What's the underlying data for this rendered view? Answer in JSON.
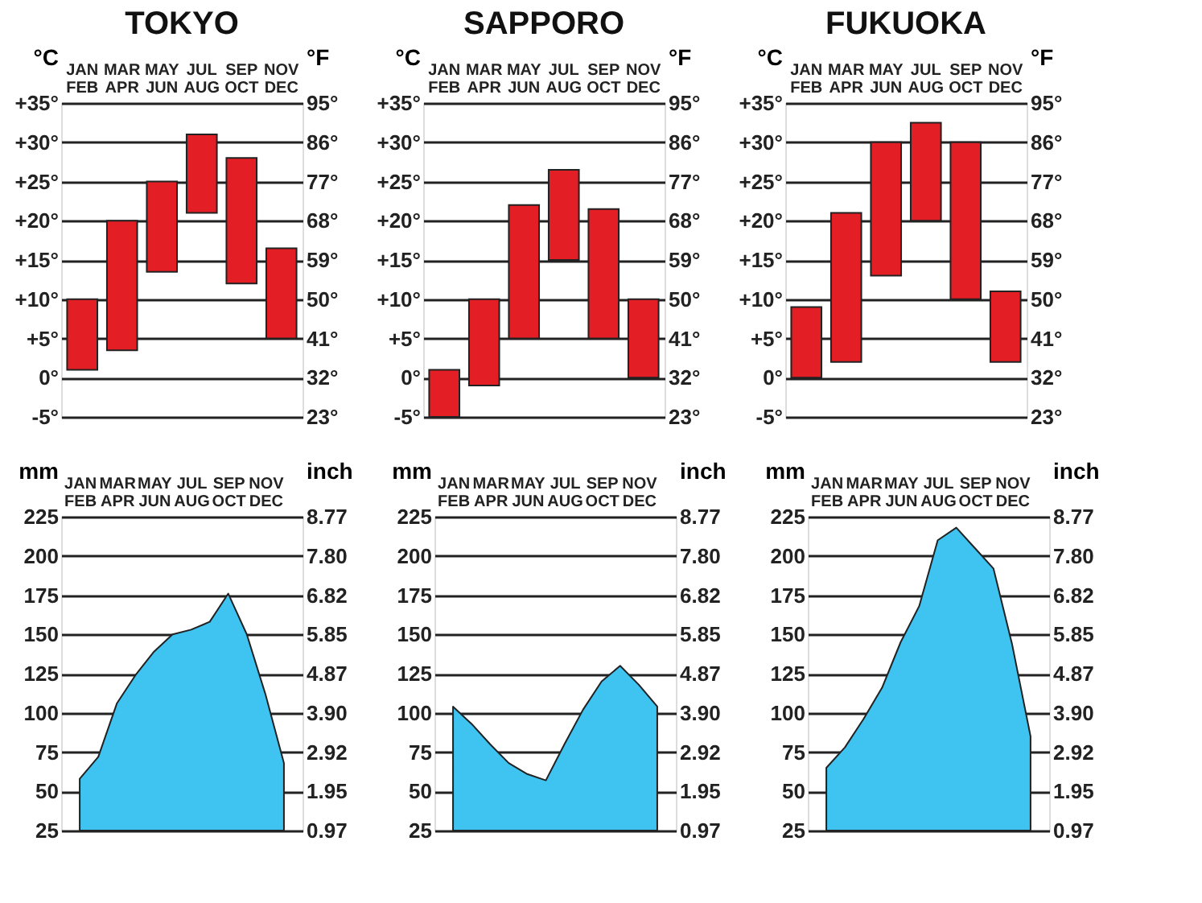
{
  "chart_data": [
    {
      "type": "bar",
      "title": "TOKYO",
      "categories": [
        "JAN\nFEB",
        "MAR\nAPR",
        "MAY\nJUN",
        "JUL\nAUG",
        "SEP\nOCT",
        "NOV\nDEC"
      ],
      "base": [
        1,
        3.5,
        13.5,
        21,
        12,
        5
      ],
      "values": [
        9,
        16.5,
        11.5,
        10,
        16,
        11.5
      ],
      "color": "#e31e24",
      "ylabel": "°C",
      "y2label": "°F",
      "ylim": [
        -5,
        35
      ],
      "yticks": [
        {
          "value": -5,
          "label": "-5°"
        },
        {
          "value": 0,
          "label": "0°"
        },
        {
          "value": 5,
          "label": "+5°"
        },
        {
          "value": 10,
          "label": "+10°"
        },
        {
          "value": 15,
          "label": "+15°"
        },
        {
          "value": 20,
          "label": "+20°"
        },
        {
          "value": 25,
          "label": "+25°"
        },
        {
          "value": 30,
          "label": "+30°"
        },
        {
          "value": 35,
          "label": "+35°"
        }
      ],
      "y2lim": [
        23,
        95
      ],
      "y2ticks": [
        {
          "value": 23,
          "label": "23°"
        },
        {
          "value": 32,
          "label": "32°"
        },
        {
          "value": 41,
          "label": "41°"
        },
        {
          "value": 50,
          "label": "50°"
        },
        {
          "value": 59,
          "label": "59°"
        },
        {
          "value": 68,
          "label": "68°"
        },
        {
          "value": 77,
          "label": "77°"
        },
        {
          "value": 86,
          "label": "86°"
        },
        {
          "value": 95,
          "label": "95°"
        }
      ],
      "grid": "y"
    },
    {
      "type": "bar",
      "title": "SAPPORO",
      "categories": [
        "JAN\nFEB",
        "MAR\nAPR",
        "MAY\nJUN",
        "JUL\nAUG",
        "SEP\nOCT",
        "NOV\nDEC"
      ],
      "base": [
        -5,
        -1,
        5,
        15,
        5,
        0
      ],
      "values": [
        6,
        11,
        17,
        11.5,
        16.5,
        10
      ],
      "color": "#e31e24",
      "ylabel": "°C",
      "y2label": "°F",
      "ylim": [
        -5,
        35
      ],
      "yticks": [
        {
          "value": -5,
          "label": "-5°"
        },
        {
          "value": 0,
          "label": "0°"
        },
        {
          "value": 5,
          "label": "+5°"
        },
        {
          "value": 10,
          "label": "+10°"
        },
        {
          "value": 15,
          "label": "+15°"
        },
        {
          "value": 20,
          "label": "+20°"
        },
        {
          "value": 25,
          "label": "+25°"
        },
        {
          "value": 30,
          "label": "+30°"
        },
        {
          "value": 35,
          "label": "+35°"
        }
      ],
      "y2lim": [
        23,
        95
      ],
      "y2ticks": [
        {
          "value": 23,
          "label": "23°"
        },
        {
          "value": 32,
          "label": "32°"
        },
        {
          "value": 41,
          "label": "41°"
        },
        {
          "value": 50,
          "label": "50°"
        },
        {
          "value": 59,
          "label": "59°"
        },
        {
          "value": 68,
          "label": "68°"
        },
        {
          "value": 77,
          "label": "77°"
        },
        {
          "value": 86,
          "label": "86°"
        },
        {
          "value": 95,
          "label": "95°"
        }
      ],
      "grid": "y"
    },
    {
      "type": "bar",
      "title": "FUKUOKA",
      "categories": [
        "JAN\nFEB",
        "MAR\nAPR",
        "MAY\nJUN",
        "JUL\nAUG",
        "SEP\nOCT",
        "NOV\nDEC"
      ],
      "base": [
        0,
        2,
        13,
        20,
        10,
        2
      ],
      "values": [
        9,
        19,
        17,
        12.5,
        20,
        9
      ],
      "color": "#e31e24",
      "ylabel": "°C",
      "y2label": "°F",
      "ylim": [
        -5,
        35
      ],
      "yticks": [
        {
          "value": -5,
          "label": "-5°"
        },
        {
          "value": 0,
          "label": "0°"
        },
        {
          "value": 5,
          "label": "+5°"
        },
        {
          "value": 10,
          "label": "+10°"
        },
        {
          "value": 15,
          "label": "+15°"
        },
        {
          "value": 20,
          "label": "+20°"
        },
        {
          "value": 25,
          "label": "+25°"
        },
        {
          "value": 30,
          "label": "+30°"
        },
        {
          "value": 35,
          "label": "+35°"
        }
      ],
      "y2lim": [
        23,
        95
      ],
      "y2ticks": [
        {
          "value": 23,
          "label": "23°"
        },
        {
          "value": 32,
          "label": "32°"
        },
        {
          "value": 41,
          "label": "41°"
        },
        {
          "value": 50,
          "label": "50°"
        },
        {
          "value": 59,
          "label": "59°"
        },
        {
          "value": 68,
          "label": "68°"
        },
        {
          "value": 77,
          "label": "77°"
        },
        {
          "value": 86,
          "label": "86°"
        },
        {
          "value": 95,
          "label": "95°"
        }
      ],
      "grid": "y"
    },
    {
      "type": "area",
      "categories": [
        "JAN\nFEB",
        null,
        "MAR\nAPR",
        null,
        "MAY\nJUN",
        null,
        "JUL\nAUG",
        null,
        "SEP\nOCT",
        null,
        "NOV\nDEC",
        null
      ],
      "values": [
        58,
        72,
        106,
        124,
        139,
        150,
        153,
        158,
        176,
        150,
        112,
        68
      ],
      "color": "#3fc3f0",
      "ylabel": "mm",
      "y2label": "inch",
      "ylim": [
        25,
        225
      ],
      "yticks": [
        25,
        50,
        75,
        100,
        125,
        150,
        175,
        200,
        225
      ],
      "y2lim": [
        0.97,
        8.77
      ],
      "y2ticks": [
        0.97,
        1.95,
        2.92,
        {
          "value": 3.9,
          "label": "3.90"
        },
        4.87,
        5.85,
        6.82,
        {
          "value": 7.8,
          "label": "7.80"
        },
        8.77
      ],
      "grid": "y"
    },
    {
      "type": "area",
      "categories": [
        "JAN\nFEB",
        null,
        "MAR\nAPR",
        null,
        "MAY\nJUN",
        null,
        "JUL\nAUG",
        null,
        "SEP\nOCT",
        null,
        "NOV\nDEC",
        null
      ],
      "values": [
        104,
        93,
        80,
        68,
        61,
        57,
        80,
        102,
        120,
        130,
        118,
        104
      ],
      "color": "#3fc3f0",
      "ylabel": "mm",
      "y2label": "inch",
      "ylim": [
        25,
        225
      ],
      "yticks": [
        25,
        50,
        75,
        100,
        125,
        150,
        175,
        200,
        225
      ],
      "y2lim": [
        0.97,
        8.77
      ],
      "y2ticks": [
        0.97,
        1.95,
        2.92,
        {
          "value": 3.9,
          "label": "3.90"
        },
        4.87,
        5.85,
        6.82,
        {
          "value": 7.8,
          "label": "7.80"
        },
        8.77
      ],
      "grid": "y"
    },
    {
      "type": "area",
      "categories": [
        "JAN\nFEB",
        null,
        "MAR\nAPR",
        null,
        "MAY\nJUN",
        null,
        "JUL\nAUG",
        null,
        "SEP\nOCT",
        null,
        "NOV\nDEC",
        null
      ],
      "values": [
        65,
        78,
        96,
        116,
        145,
        168,
        210,
        218,
        205,
        192,
        144,
        85
      ],
      "color": "#3fc3f0",
      "ylabel": "mm",
      "y2label": "inch",
      "ylim": [
        25,
        225
      ],
      "yticks": [
        25,
        50,
        75,
        100,
        125,
        150,
        175,
        200,
        225
      ],
      "y2lim": [
        0.97,
        8.77
      ],
      "y2ticks": [
        0.97,
        1.95,
        2.92,
        {
          "value": 3.9,
          "label": "3.90"
        },
        4.87,
        5.85,
        6.82,
        {
          "value": 7.8,
          "label": "7.80"
        },
        8.77
      ],
      "grid": "y"
    }
  ]
}
